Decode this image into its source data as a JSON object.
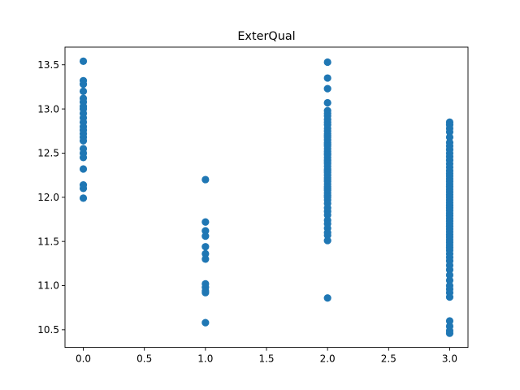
{
  "chart_data": {
    "type": "scatter",
    "title": "ExterQual",
    "xlabel": "",
    "ylabel": "",
    "xlim": [
      -0.15,
      3.15
    ],
    "ylim": [
      10.3,
      13.7
    ],
    "xticks": [
      0.0,
      0.5,
      1.0,
      1.5,
      2.0,
      2.5,
      3.0
    ],
    "xtick_labels": [
      "0.0",
      "0.5",
      "1.0",
      "1.5",
      "2.0",
      "2.5",
      "3.0"
    ],
    "yticks": [
      10.5,
      11.0,
      11.5,
      12.0,
      12.5,
      13.0,
      13.5
    ],
    "ytick_labels": [
      "10.5",
      "11.0",
      "11.5",
      "12.0",
      "12.5",
      "13.0",
      "13.5"
    ],
    "grid": false,
    "marker_color": "#1f77b4",
    "series": [
      {
        "x": 0,
        "values": [
          13.54,
          13.32,
          13.28,
          13.2,
          13.12,
          13.08,
          13.03,
          13.0,
          12.95,
          12.9,
          12.85,
          12.8,
          12.76,
          12.72,
          12.68,
          12.64,
          12.55,
          12.5,
          12.45,
          12.32,
          12.14,
          12.1,
          11.99
        ]
      },
      {
        "x": 1,
        "values": [
          12.2,
          11.72,
          11.62,
          11.56,
          11.44,
          11.36,
          11.3,
          11.02,
          10.98,
          10.94,
          10.92,
          10.58
        ]
      },
      {
        "x": 2,
        "values": [
          13.53,
          13.35,
          13.23,
          13.07,
          12.98,
          12.95,
          12.92,
          12.88,
          12.85,
          12.82,
          12.78,
          12.75,
          12.72,
          12.7,
          12.68,
          12.65,
          12.62,
          12.6,
          12.58,
          12.55,
          12.52,
          12.5,
          12.48,
          12.45,
          12.42,
          12.4,
          12.38,
          12.35,
          12.32,
          12.3,
          12.28,
          12.25,
          12.22,
          12.2,
          12.18,
          12.15,
          12.12,
          12.1,
          12.08,
          12.05,
          12.02,
          12.0,
          11.97,
          11.93,
          11.88,
          11.84,
          11.8,
          11.74,
          11.7,
          11.65,
          11.6,
          11.57,
          11.51,
          10.86
        ]
      },
      {
        "x": 3,
        "values": [
          12.85,
          12.82,
          12.78,
          12.74,
          12.68,
          12.62,
          12.58,
          12.54,
          12.5,
          12.46,
          12.42,
          12.38,
          12.34,
          12.3,
          12.27,
          12.24,
          12.21,
          12.18,
          12.15,
          12.12,
          12.09,
          12.06,
          12.03,
          12.0,
          11.97,
          11.94,
          11.91,
          11.88,
          11.85,
          11.82,
          11.79,
          11.76,
          11.73,
          11.7,
          11.67,
          11.64,
          11.61,
          11.58,
          11.55,
          11.52,
          11.49,
          11.46,
          11.43,
          11.4,
          11.36,
          11.32,
          11.28,
          11.23,
          11.18,
          11.12,
          11.06,
          11.0,
          10.96,
          10.92,
          10.87,
          10.6,
          10.54,
          10.49,
          10.46
        ]
      }
    ]
  }
}
